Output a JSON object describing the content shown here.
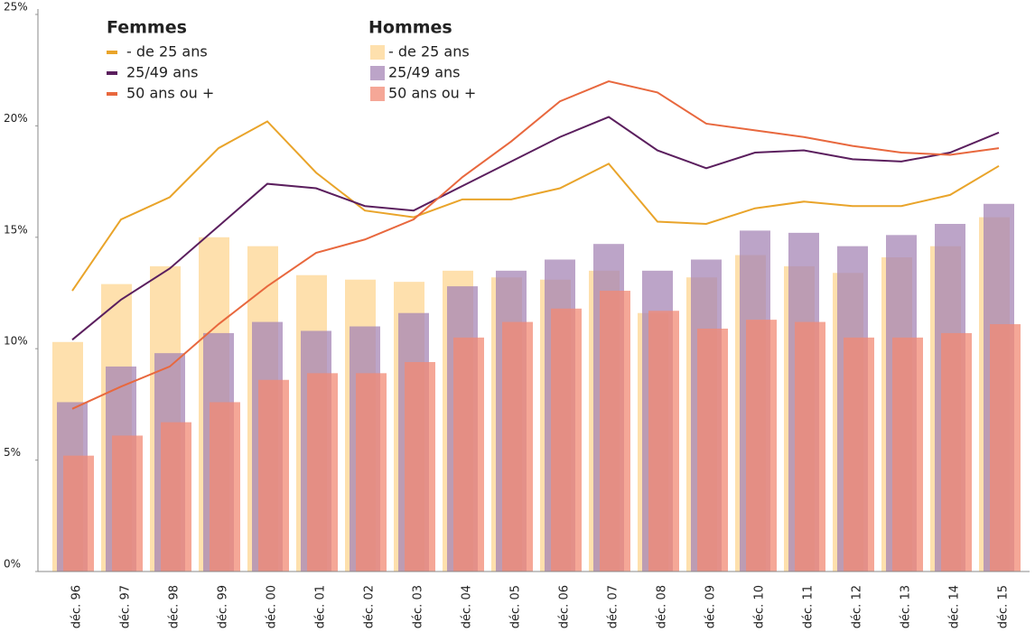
{
  "chart_data": {
    "type": "bar",
    "categories": [
      "déc. 96",
      "déc. 97",
      "déc. 98",
      "déc. 99",
      "déc. 00",
      "déc. 01",
      "déc. 02",
      "déc. 03",
      "déc. 04",
      "déc. 05",
      "déc. 06",
      "déc. 07",
      "déc. 08",
      "déc. 09",
      "déc. 10",
      "déc. 11",
      "déc. 12",
      "déc. 13",
      "déc. 14",
      "déc. 15"
    ],
    "series": [
      {
        "name": "- de 25 ans",
        "group": "Femmes",
        "type": "line",
        "color": "#e9a42a",
        "values": [
          12.6,
          15.8,
          16.8,
          19.0,
          20.2,
          17.9,
          16.2,
          15.9,
          16.7,
          16.7,
          17.2,
          18.3,
          15.7,
          15.6,
          16.3,
          16.6,
          16.4,
          16.4,
          16.9,
          18.2
        ]
      },
      {
        "name": "25/49 ans",
        "group": "Femmes",
        "type": "line",
        "color": "#5b1f5e",
        "values": [
          10.4,
          12.2,
          13.6,
          15.5,
          17.4,
          17.2,
          16.4,
          16.2,
          17.3,
          18.4,
          19.5,
          20.4,
          18.9,
          18.1,
          18.8,
          18.9,
          18.5,
          18.4,
          18.8,
          19.7
        ]
      },
      {
        "name": "50 ans ou +",
        "group": "Femmes",
        "type": "line",
        "color": "#e8683e",
        "values": [
          7.3,
          8.3,
          9.2,
          11.1,
          12.8,
          14.3,
          14.9,
          15.8,
          17.7,
          19.3,
          21.1,
          22.0,
          21.5,
          20.1,
          19.8,
          19.5,
          19.1,
          18.8,
          18.7,
          19.0
        ]
      },
      {
        "name": "- de 25 ans",
        "group": "Hommes",
        "type": "bar",
        "color": "#fdd592",
        "values": [
          10.3,
          12.9,
          13.7,
          15.0,
          14.6,
          13.3,
          13.1,
          13.0,
          13.5,
          13.2,
          13.1,
          13.5,
          11.6,
          13.2,
          14.2,
          13.7,
          13.4,
          14.1,
          14.6,
          15.9
        ]
      },
      {
        "name": "25/49 ans",
        "group": "Hommes",
        "type": "bar",
        "color": "#a585b5",
        "values": [
          7.6,
          9.2,
          9.8,
          10.7,
          11.2,
          10.8,
          11.0,
          11.6,
          12.8,
          13.5,
          14.0,
          14.7,
          13.5,
          14.0,
          15.3,
          15.2,
          14.6,
          15.1,
          15.6,
          16.5
        ]
      },
      {
        "name": "50 ans ou +",
        "group": "Hommes",
        "type": "bar",
        "color": "#f28a74",
        "values": [
          5.2,
          6.1,
          6.7,
          7.6,
          8.6,
          8.9,
          8.9,
          9.4,
          10.5,
          11.2,
          11.8,
          12.6,
          11.7,
          10.9,
          11.3,
          11.2,
          10.5,
          10.5,
          10.7,
          11.1
        ]
      }
    ],
    "ylim": [
      0,
      25
    ],
    "yticks": [
      {
        "value": 0,
        "label": "0%"
      },
      {
        "value": 5,
        "label": "5%"
      },
      {
        "value": 10,
        "label": "10%"
      },
      {
        "value": 15,
        "label": "15%"
      },
      {
        "value": 20,
        "label": "20%"
      },
      {
        "value": 25,
        "label": "25%"
      }
    ],
    "grid": false
  }
}
